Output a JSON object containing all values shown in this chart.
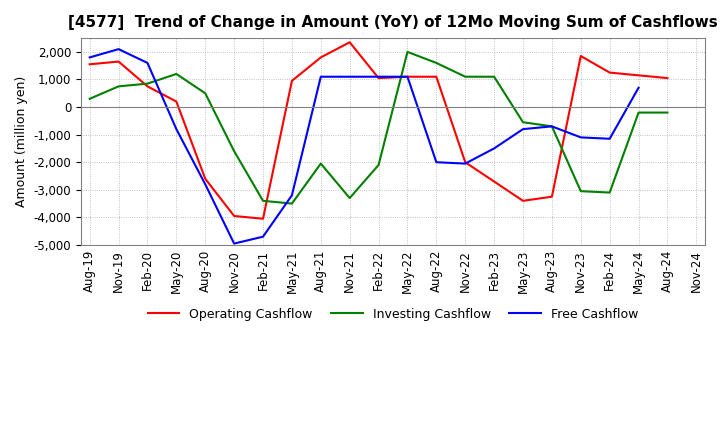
{
  "title": "[4577]  Trend of Change in Amount (YoY) of 12Mo Moving Sum of Cashflows",
  "ylabel": "Amount (million yen)",
  "ylim": [
    -5000,
    2500
  ],
  "yticks": [
    -5000,
    -4000,
    -3000,
    -2000,
    -1000,
    0,
    1000,
    2000
  ],
  "x_labels": [
    "Aug-19",
    "Nov-19",
    "Feb-20",
    "May-20",
    "Aug-20",
    "Nov-20",
    "Feb-21",
    "May-21",
    "Aug-21",
    "Nov-21",
    "Feb-22",
    "May-22",
    "Aug-22",
    "Nov-22",
    "Feb-23",
    "May-23",
    "Aug-23",
    "Nov-23",
    "Feb-24",
    "May-24",
    "Aug-24",
    "Nov-24"
  ],
  "operating": [
    1550,
    1650,
    750,
    200,
    -2600,
    -3950,
    -4050,
    950,
    1800,
    2350,
    1050,
    1100,
    1100,
    -2000,
    -2700,
    -3400,
    -3250,
    1850,
    1250,
    1150,
    1050,
    null
  ],
  "investing": [
    300,
    750,
    850,
    1200,
    500,
    -1600,
    -3400,
    -3500,
    -2050,
    -3300,
    -2100,
    2000,
    1600,
    1100,
    1100,
    -550,
    -700,
    -3050,
    -3100,
    -200,
    -200,
    null
  ],
  "free": [
    1800,
    2100,
    1600,
    -800,
    -2800,
    -4950,
    -4700,
    -3200,
    1100,
    1100,
    1100,
    1100,
    -2000,
    -2050,
    -1500,
    -800,
    -700,
    -1100,
    -1150,
    700,
    null,
    null
  ],
  "operating_color": "#ff0000",
  "investing_color": "#008000",
  "free_color": "#0000ff",
  "background_color": "#ffffff",
  "grid_color": "#b0b0b0",
  "title_fontsize": 11,
  "label_fontsize": 9,
  "tick_fontsize": 8.5
}
